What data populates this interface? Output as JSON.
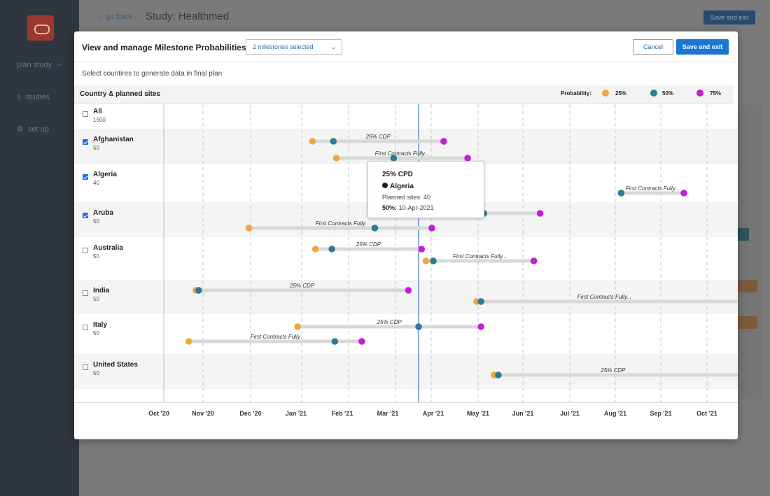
{
  "background": {
    "nav": [
      {
        "label": "plan study",
        "icon": "plus-icon"
      },
      {
        "label": "studies",
        "icon": "caduceus-icon"
      },
      {
        "label": "set up",
        "icon": "gear-icon"
      }
    ],
    "go_back": "← go back",
    "study_title": "Study:  Healthmed",
    "save_exit": "Save and exit"
  },
  "modal": {
    "title": "View and manage Milestone Probabilities",
    "milestone_select": "2 milestones selected",
    "cancel_label": "Cancel",
    "save_label": "Save and exit",
    "subtitle": "Select countires to generate data in final plan",
    "column_title": "Country & planned sites",
    "legend_title": "Probability:",
    "legend": [
      {
        "label": "25%",
        "color": "#f0a73a"
      },
      {
        "label": "50%",
        "color": "#2d7a99"
      },
      {
        "label": "75%",
        "color": "#c21fd6"
      }
    ]
  },
  "rows": [
    {
      "name": "All",
      "sites": "1500",
      "checked": false
    },
    {
      "name": "Afghanistan",
      "sites": "50",
      "checked": true
    },
    {
      "name": "Algeria",
      "sites": "40",
      "checked": true
    },
    {
      "name": "Aruba",
      "sites": "50",
      "checked": true
    },
    {
      "name": "Australia",
      "sites": "50",
      "checked": false
    },
    {
      "name": "India",
      "sites": "50",
      "checked": false
    },
    {
      "name": "Italy",
      "sites": "50",
      "checked": false
    },
    {
      "name": "United States",
      "sites": "50",
      "checked": false
    }
  ],
  "chart_data": {
    "type": "timeline",
    "x_ticks": [
      "Oct '20",
      "Nov '20",
      "Dec '20",
      "Jan '21",
      "Feb '21",
      "Mar '21",
      "Apr '21",
      "May '21",
      "Jun '21",
      "Jul '21",
      "Aug '21",
      "Sep '21",
      "Oct '21"
    ],
    "current_date": "2021-03-25",
    "bars": [
      {
        "country": "Afghanistan",
        "label": "25% CDP",
        "p25": "2021-01-12",
        "p50": "2021-01-26",
        "p75": "2021-04-08"
      },
      {
        "country": "Afghanistan",
        "label": "First Contracts Fully...",
        "p25": "2021-01-28",
        "p50": "2021-03-05",
        "p75": "2021-04-24"
      },
      {
        "country": "Algeria",
        "label": "First Contracts Fully...",
        "p25": null,
        "p50": "2021-08-05",
        "p75": "2021-09-16"
      },
      {
        "country": "Aruba",
        "label": "",
        "p25": "2021-02-28",
        "p50": "2021-05-05",
        "p75": "2021-06-12"
      },
      {
        "country": "Aruba",
        "label": "First Contracts Fully",
        "p25": "2020-11-30",
        "p50": "2021-02-21",
        "p75": "2021-03-31"
      },
      {
        "country": "Australia",
        "label": "25% CDP",
        "p25": "2021-01-14",
        "p50": "2021-01-25",
        "p75": "2021-03-24"
      },
      {
        "country": "Australia",
        "label": "First Contracts Fully...",
        "p25": "2021-03-27",
        "p50": "2021-04-01",
        "p75": "2021-06-08"
      },
      {
        "country": "India",
        "label": "25% CDP",
        "p25": "2020-10-27",
        "p50": "2020-10-29",
        "p75": "2021-03-15"
      },
      {
        "country": "India",
        "label": "First Contracts Fully...",
        "p25": "2021-04-30",
        "p50": "2021-05-03",
        "p75": null
      },
      {
        "country": "Italy",
        "label": "25% CDP",
        "p25": "2021-01-02",
        "p50": "2021-03-22",
        "p75": "2021-05-03"
      },
      {
        "country": "Italy",
        "label": "First Contracts Fully",
        "p25": "2020-10-22",
        "p50": "2021-01-27",
        "p75": "2021-02-13"
      },
      {
        "country": "United States",
        "label": "25% CDP",
        "p25": "2021-05-12",
        "p50": "2021-05-15",
        "p75": null
      }
    ]
  },
  "tooltip": {
    "title": "25% CPD",
    "country": "Algeria",
    "sites": "Planned sites: 40",
    "date_label": "50%:",
    "date_value": "10-Apr-2021"
  }
}
